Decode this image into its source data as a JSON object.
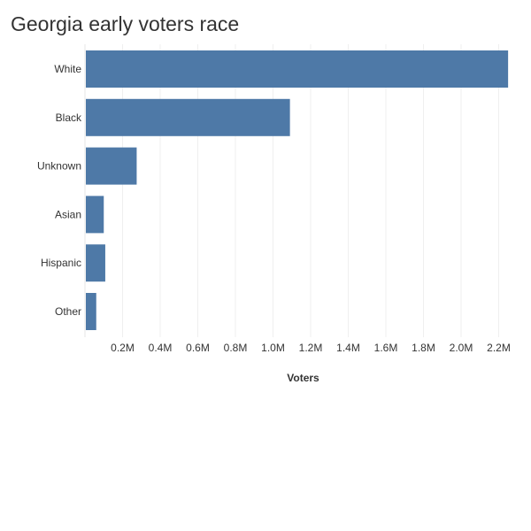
{
  "chart_data": {
    "type": "bar",
    "orientation": "horizontal",
    "title": "Georgia early voters race",
    "xlabel": "Voters",
    "ylabel": "",
    "categories": [
      "White",
      "Black",
      "Unknown",
      "Asian",
      "Hispanic",
      "Other"
    ],
    "values": [
      2250000,
      1090000,
      275000,
      100000,
      108000,
      60000
    ],
    "xlim": [
      0,
      2320000
    ],
    "x_ticks": [
      200000,
      400000,
      600000,
      800000,
      1000000,
      1200000,
      1400000,
      1600000,
      1800000,
      2000000,
      2200000
    ],
    "x_tick_labels": [
      "0.2M",
      "0.4M",
      "0.6M",
      "0.8M",
      "1.0M",
      "1.2M",
      "1.4M",
      "1.6M",
      "1.8M",
      "2.0M",
      "2.2M"
    ],
    "grid": "vertical",
    "legend": "none",
    "colors": {
      "bar": "#4e79a7",
      "grid": "#efefef",
      "axis": "#e6e6e6",
      "text": "#333333"
    }
  }
}
